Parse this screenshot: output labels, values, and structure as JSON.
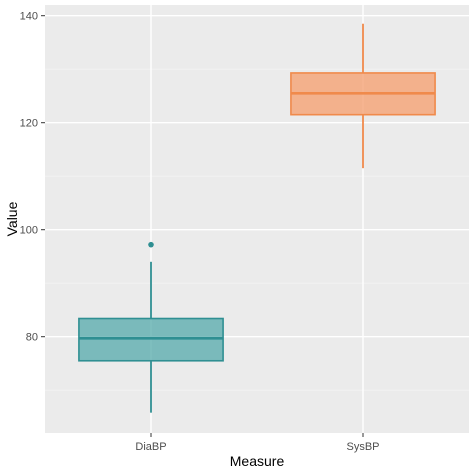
{
  "chart_data": {
    "type": "box",
    "title": "",
    "xlabel": "Measure",
    "ylabel": "Value",
    "categories": [
      "DiaBP",
      "SysBP"
    ],
    "ylim": [
      62,
      142
    ],
    "yticks": [
      80,
      100,
      120,
      140
    ],
    "grid": true,
    "legend": "none",
    "boxes": [
      {
        "category": "DiaBP",
        "min": 65.8,
        "q1": 75.5,
        "median": 79.7,
        "q3": 83.4,
        "max": 94.0,
        "outliers": [
          97.2
        ]
      },
      {
        "category": "SysBP",
        "min": 111.5,
        "q1": 121.5,
        "median": 125.5,
        "q3": 129.3,
        "max": 138.5,
        "outliers": []
      }
    ],
    "colors": {
      "DiaBP": {
        "line": "#2f8f92",
        "fill": "#4da6a8"
      },
      "SysBP": {
        "line": "#f08a4b",
        "fill": "#f59a66"
      },
      "panel": "#ebebeb",
      "grid_major": "#ffffff",
      "grid_minor": "#f4f4f4"
    }
  }
}
